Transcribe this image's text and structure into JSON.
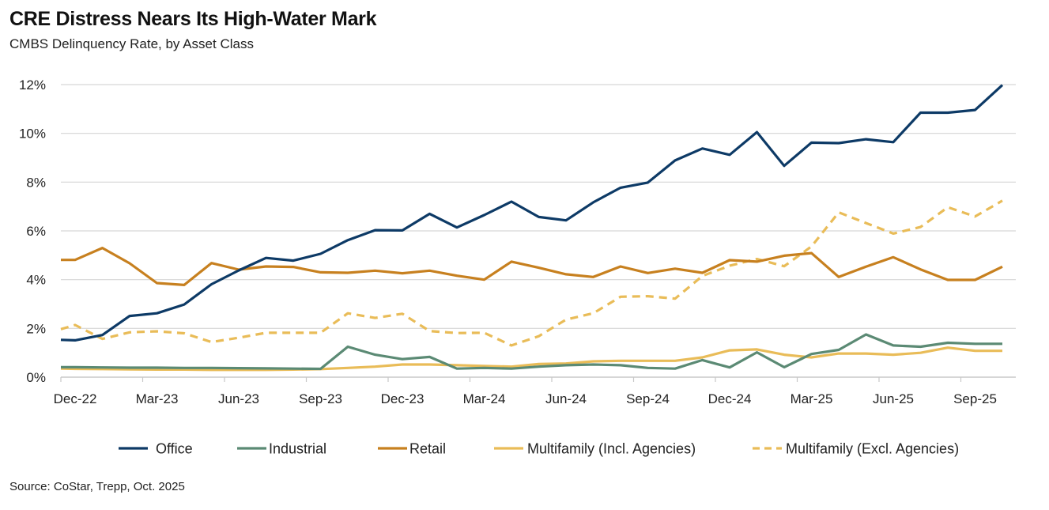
{
  "title": "CRE Distress Nears Its High-Water Mark",
  "subtitle": "CMBS Delinquency Rate, by Asset Class",
  "source": "Source: CoStar, Trepp, Oct. 2025",
  "chart_data": {
    "type": "line",
    "title": "CRE Distress Nears Its High-Water Mark",
    "subtitle": "CMBS Delinquency Rate, by Asset Class",
    "x": [
      "Nov-22",
      "Dec-22",
      "Jan-23",
      "Feb-23",
      "Mar-23",
      "Apr-23",
      "May-23",
      "Jun-23",
      "Jul-23",
      "Aug-23",
      "Sep-23",
      "Oct-23",
      "Nov-23",
      "Dec-23",
      "Jan-24",
      "Feb-24",
      "Mar-24",
      "Apr-24",
      "May-24",
      "Jun-24",
      "Jul-24",
      "Aug-24",
      "Sep-24",
      "Oct-24",
      "Nov-24",
      "Dec-24",
      "Jan-25",
      "Feb-25",
      "Mar-25",
      "Apr-25",
      "May-25",
      "Jun-25",
      "Jul-25",
      "Aug-25",
      "Sep-25",
      "Oct-25"
    ],
    "x_tick_labels": [
      "Dec-22",
      "Mar-23",
      "Jun-23",
      "Sep-23",
      "Dec-23",
      "Mar-24",
      "Jun-24",
      "Sep-24",
      "Dec-24",
      "Mar-25",
      "Jun-25",
      "Sep-25"
    ],
    "y_tick_labels": [
      "0%",
      "2%",
      "4%",
      "6%",
      "8%",
      "10%",
      "12%"
    ],
    "ylim": [
      0,
      12
    ],
    "y_unit": "%",
    "grid": "horizontal",
    "legend_position": "bottom",
    "series": [
      {
        "name": "Office",
        "color": "#0d3a66",
        "dashed": false,
        "values": [
          1.53,
          1.51,
          1.73,
          2.51,
          2.62,
          2.98,
          3.81,
          4.38,
          4.89,
          4.78,
          5.06,
          5.62,
          6.03,
          6.02,
          6.7,
          6.14,
          6.65,
          7.2,
          6.57,
          6.43,
          7.17,
          7.77,
          7.98,
          8.89,
          9.38,
          9.12,
          10.05,
          8.67,
          9.62,
          9.6,
          9.76,
          9.64,
          10.85,
          10.85,
          10.96,
          11.98
        ]
      },
      {
        "name": "Industrial",
        "color": "#5b8a74",
        "dashed": false,
        "values": [
          0.41,
          0.41,
          0.4,
          0.39,
          0.39,
          0.38,
          0.38,
          0.37,
          0.36,
          0.35,
          0.34,
          1.25,
          0.92,
          0.74,
          0.83,
          0.35,
          0.38,
          0.35,
          0.43,
          0.49,
          0.52,
          0.49,
          0.38,
          0.35,
          0.7,
          0.4,
          1.02,
          0.41,
          0.95,
          1.12,
          1.75,
          1.3,
          1.25,
          1.41,
          1.37,
          1.37
        ]
      },
      {
        "name": "Retail",
        "color": "#c7801f",
        "dashed": false,
        "values": [
          4.81,
          4.81,
          5.3,
          4.67,
          3.86,
          3.78,
          4.68,
          4.41,
          4.54,
          4.52,
          4.3,
          4.28,
          4.37,
          4.26,
          4.37,
          4.16,
          4.0,
          4.74,
          4.49,
          4.22,
          4.11,
          4.54,
          4.27,
          4.45,
          4.28,
          4.8,
          4.74,
          4.98,
          5.09,
          4.11,
          4.53,
          4.92,
          4.42,
          3.99,
          3.99,
          4.53
        ]
      },
      {
        "name": "Multifamily (Incl. Agencies)",
        "color": "#e9bc58",
        "dashed": false,
        "values": [
          0.35,
          0.34,
          0.33,
          0.32,
          0.31,
          0.31,
          0.3,
          0.3,
          0.3,
          0.31,
          0.33,
          0.38,
          0.43,
          0.52,
          0.52,
          0.49,
          0.46,
          0.43,
          0.54,
          0.56,
          0.65,
          0.67,
          0.67,
          0.67,
          0.81,
          1.1,
          1.14,
          0.92,
          0.81,
          0.97,
          0.97,
          0.92,
          1.0,
          1.21,
          1.08,
          1.08
        ]
      },
      {
        "name": "Multifamily (Excl. Agencies)",
        "color": "#e9bc58",
        "dashed": true,
        "values": [
          1.97,
          2.14,
          1.57,
          1.84,
          1.88,
          1.8,
          1.44,
          1.62,
          1.82,
          1.82,
          1.82,
          2.62,
          2.43,
          2.6,
          1.89,
          1.81,
          1.82,
          1.3,
          1.68,
          2.36,
          2.62,
          3.3,
          3.32,
          3.22,
          4.15,
          4.57,
          4.85,
          4.55,
          5.36,
          6.76,
          6.32,
          5.89,
          6.16,
          6.97,
          6.59,
          7.24
        ]
      }
    ]
  }
}
